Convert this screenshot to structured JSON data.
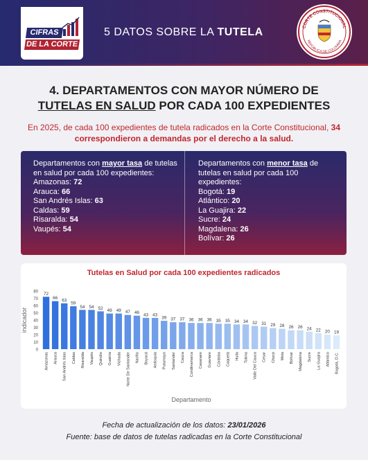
{
  "header": {
    "logo_line1": "CIFRAS",
    "logo_line2": "DE LA CORTE",
    "title_prefix": "5 DATOS SOBRE LA",
    "title_bold": "TUTELA",
    "seal_text_top": "CORTE CONSTITUCIONAL",
    "seal_text_bottom": "REPÚBLICA DE COLOMBIA"
  },
  "section": {
    "title_line1": "4. DEPARTAMENTOS CON MAYOR NÚMERO DE",
    "title_line2_underlined": "TUTELAS EN SALUD",
    "title_line2_rest": " POR CADA 100 EXPEDIENTES"
  },
  "intro": {
    "text_a": "En 2025, de cada 100 expedientes de tutela radicados en la Corte Constitucional, ",
    "text_bold": "34 correspondieron a demandas por el derecho a la salud."
  },
  "departments": {
    "left": {
      "heading_pre": "Departamentos con ",
      "heading_hl": "mayor tasa",
      "heading_post": " de tutelas en salud  por cada 100 expedientes:",
      "items": [
        {
          "name": "Amazonas: ",
          "value": "72"
        },
        {
          "name": "Arauca: ",
          "value": "66"
        },
        {
          "name": "San Andrés Islas: ",
          "value": "63"
        },
        {
          "name": "Caldas: ",
          "value": "59"
        },
        {
          "name": "Risaralda: ",
          "value": "54"
        },
        {
          "name": "Vaupés: ",
          "value": "54"
        }
      ]
    },
    "right": {
      "heading_pre": "Departamentos con ",
      "heading_hl": "menor tasa",
      "heading_post": " de tutelas en salud  por cada 100 expedientes:",
      "items": [
        {
          "name": "Bogotá: ",
          "value": "19"
        },
        {
          "name": "Atlántico: ",
          "value": "20"
        },
        {
          "name": "La Guajira: ",
          "value": "22"
        },
        {
          "name": "Sucre: ",
          "value": "24"
        },
        {
          "name": "Magdalena: ",
          "value": "26"
        },
        {
          "name": "Bolívar: ",
          "value": "26"
        }
      ]
    }
  },
  "chart_data": {
    "type": "bar",
    "title": "Tutelas en Salud por cada 100 expedientes radicados",
    "xlabel": "Departamento",
    "ylabel": "indicador",
    "ylim": [
      0,
      80
    ],
    "yticks": [
      0,
      10,
      20,
      30,
      40,
      50,
      60,
      70,
      80
    ],
    "categories": [
      "Amazonas",
      "Arauca",
      "San Andrés Islas",
      "Caldas",
      "Risaralda",
      "Vaupés",
      "Quindío",
      "Guainía",
      "Vichada",
      "Norte De Santander",
      "Nariño",
      "Boyacá",
      "Antioquia",
      "Putumayo",
      "Santander",
      "Cauca",
      "Cundinamarca",
      "Casanare",
      "Guaviare",
      "Córdoba",
      "Caquetá",
      "Huila",
      "Tolima",
      "Valle Del Cauca",
      "Cesar",
      "Chocó",
      "Meta",
      "Bolívar",
      "Magdalena",
      "Sucre",
      "La Guajira",
      "Atlántico",
      "Bogotá, D.C."
    ],
    "values": [
      72,
      66,
      63,
      59,
      54,
      54,
      52,
      49,
      49,
      47,
      46,
      43,
      43,
      39,
      37,
      37,
      36,
      36,
      36,
      35,
      35,
      34,
      34,
      32,
      31,
      29,
      28,
      26,
      26,
      24,
      22,
      20,
      19
    ],
    "grid": false,
    "legend": "none",
    "colors": {
      "high": "#2f6fde",
      "low": "#dcebfa"
    }
  },
  "footer": {
    "update_label": "Fecha de actualización de los datos: ",
    "update_date": "23/01/2026",
    "source": "Fuente: base de datos de tutelas radicadas en la Corte Constitucional"
  }
}
